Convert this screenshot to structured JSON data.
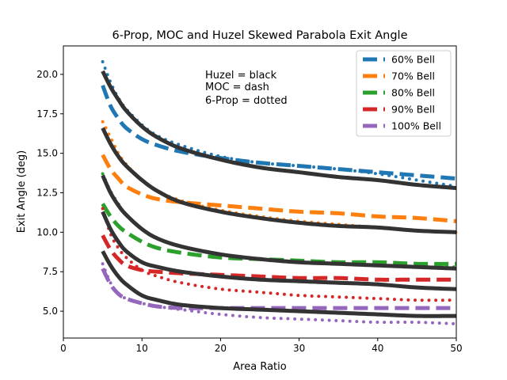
{
  "chart_data": {
    "type": "line",
    "title": "6-Prop, MOC and Huzel Skewed Parabola Exit Angle",
    "xlabel": "Area Ratio",
    "ylabel": "Exit Angle (deg)",
    "xlim": [
      0,
      50
    ],
    "ylim": [
      3.3,
      21.8
    ],
    "xticks": [
      0,
      10,
      20,
      30,
      40,
      50
    ],
    "yticks": [
      5.0,
      7.5,
      10.0,
      12.5,
      15.0,
      17.5,
      20.0
    ],
    "xtick_labels": [
      "0",
      "10",
      "20",
      "30",
      "40",
      "50"
    ],
    "ytick_labels": [
      "5.0",
      "7.5",
      "10.0",
      "12.5",
      "15.0",
      "17.5",
      "20.0"
    ],
    "annotation": [
      "Huzel = black",
      "MOC = dash",
      "6-Prop = dotted"
    ],
    "legend_position": "top-right",
    "x": [
      5,
      6,
      7,
      8,
      10,
      12,
      15,
      20,
      25,
      30,
      35,
      40,
      45,
      50
    ],
    "series": [
      {
        "name": "60% Bell",
        "color": "#1f77b4",
        "huzel": [
          20.2,
          19.2,
          18.4,
          17.7,
          16.7,
          16.0,
          15.3,
          14.6,
          14.1,
          13.8,
          13.5,
          13.3,
          13.0,
          12.8
        ],
        "moc": [
          19.3,
          18.0,
          17.2,
          16.6,
          15.9,
          15.5,
          15.1,
          14.7,
          14.4,
          14.2,
          14.0,
          13.8,
          13.6,
          13.4
        ],
        "sixprop": [
          20.8,
          19.5,
          18.5,
          17.8,
          16.8,
          16.1,
          15.5,
          14.8,
          14.4,
          14.2,
          14.0,
          13.7,
          13.3,
          12.9
        ]
      },
      {
        "name": "70% Bell",
        "color": "#ff7f0e",
        "huzel": [
          16.6,
          15.6,
          14.8,
          14.2,
          13.3,
          12.6,
          11.9,
          11.3,
          10.9,
          10.6,
          10.4,
          10.3,
          10.1,
          10.0
        ],
        "moc": [
          14.9,
          14.0,
          13.4,
          12.9,
          12.4,
          12.1,
          11.9,
          11.7,
          11.5,
          11.3,
          11.2,
          11.0,
          10.9,
          10.7
        ],
        "sixprop": [
          17.0,
          16.0,
          15.0,
          14.3,
          13.3,
          12.6,
          12.0,
          11.4,
          11.0,
          10.7,
          10.5,
          10.3,
          10.1,
          10.0
        ]
      },
      {
        "name": "80% Bell",
        "color": "#2ca02c",
        "huzel": [
          13.6,
          12.5,
          11.7,
          11.1,
          10.2,
          9.6,
          9.1,
          8.6,
          8.3,
          8.1,
          8.0,
          7.9,
          7.8,
          7.7
        ],
        "moc": [
          11.8,
          11.0,
          10.4,
          10.0,
          9.4,
          9.0,
          8.7,
          8.4,
          8.3,
          8.2,
          8.1,
          8.1,
          8.0,
          8.0
        ],
        "sixprop": [
          13.7,
          12.6,
          11.8,
          11.1,
          10.2,
          9.6,
          9.1,
          8.6,
          8.3,
          8.1,
          8.0,
          7.9,
          7.8,
          7.8
        ]
      },
      {
        "name": "90% Bell",
        "color": "#d62728",
        "huzel": [
          11.3,
          10.2,
          9.4,
          8.8,
          8.1,
          7.8,
          7.5,
          7.2,
          7.0,
          6.9,
          6.8,
          6.7,
          6.5,
          6.4
        ],
        "moc": [
          9.8,
          8.9,
          8.3,
          7.9,
          7.6,
          7.5,
          7.4,
          7.3,
          7.2,
          7.1,
          7.1,
          7.0,
          7.0,
          7.0
        ],
        "sixprop": [
          11.5,
          9.9,
          9.0,
          8.4,
          7.6,
          7.2,
          6.8,
          6.4,
          6.2,
          6.0,
          5.9,
          5.8,
          5.7,
          5.7
        ]
      },
      {
        "name": "100% Bell",
        "color": "#9467bd",
        "huzel": [
          8.8,
          7.9,
          7.2,
          6.7,
          6.0,
          5.7,
          5.4,
          5.2,
          5.1,
          5.0,
          4.9,
          4.8,
          4.7,
          4.7
        ],
        "moc": [
          7.7,
          6.7,
          6.1,
          5.8,
          5.5,
          5.3,
          5.2,
          5.2,
          5.2,
          5.2,
          5.2,
          5.2,
          5.2,
          5.2
        ],
        "sixprop": [
          8.0,
          6.8,
          6.1,
          5.8,
          5.5,
          5.3,
          5.1,
          4.8,
          4.6,
          4.5,
          4.4,
          4.3,
          4.3,
          4.2
        ]
      }
    ]
  }
}
